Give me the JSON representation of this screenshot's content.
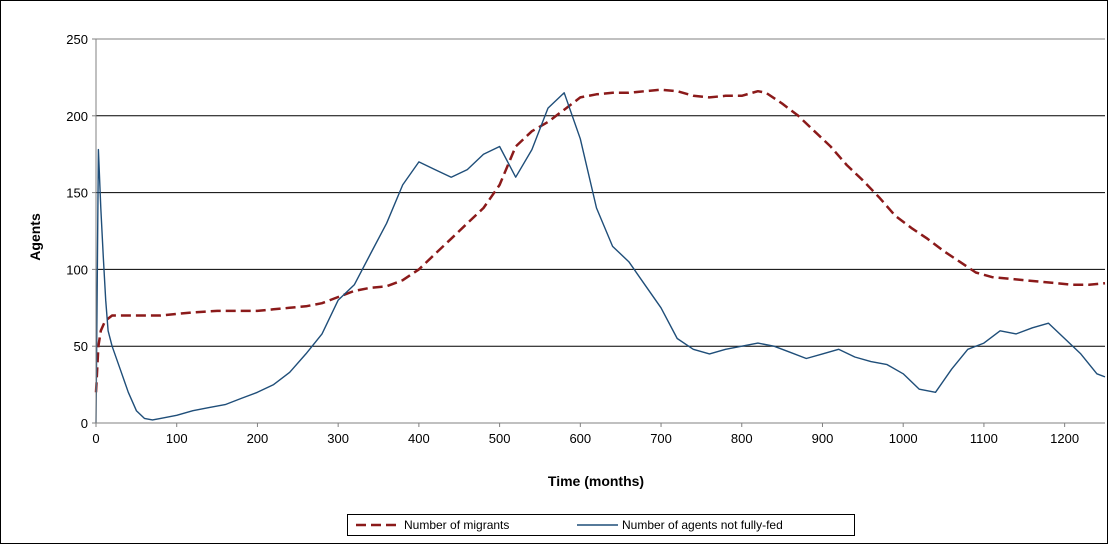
{
  "chart_data": {
    "type": "line",
    "xlabel": "Time (months)",
    "ylabel": "Agents",
    "xlim": [
      0,
      1250
    ],
    "ylim": [
      0,
      250
    ],
    "x_ticks": [
      0,
      100,
      200,
      300,
      400,
      500,
      600,
      700,
      800,
      900,
      1000,
      1100,
      1200
    ],
    "y_ticks": [
      0,
      50,
      100,
      150,
      200,
      250
    ],
    "grid": "horizontal",
    "legend_position": "bottom-center",
    "series": [
      {
        "name": "Number of migrants",
        "color": "#8B1A1A",
        "style": "dashed",
        "x": [
          0,
          3,
          6,
          10,
          15,
          20,
          40,
          60,
          80,
          100,
          120,
          150,
          180,
          200,
          220,
          240,
          260,
          280,
          300,
          320,
          340,
          360,
          380,
          400,
          420,
          440,
          460,
          480,
          500,
          520,
          540,
          560,
          580,
          600,
          620,
          640,
          660,
          680,
          700,
          720,
          740,
          760,
          780,
          800,
          820,
          830,
          850,
          870,
          890,
          910,
          930,
          950,
          970,
          990,
          1010,
          1030,
          1050,
          1070,
          1090,
          1110,
          1130,
          1150,
          1170,
          1190,
          1210,
          1230,
          1250
        ],
        "values": [
          20,
          50,
          60,
          65,
          68,
          70,
          70,
          70,
          70,
          71,
          72,
          73,
          73,
          73,
          74,
          75,
          76,
          78,
          82,
          86,
          88,
          89,
          93,
          100,
          110,
          120,
          130,
          140,
          155,
          180,
          190,
          196,
          204,
          212,
          214,
          215,
          215,
          216,
          217,
          216,
          213,
          212,
          213,
          213,
          216,
          215,
          208,
          200,
          190,
          180,
          168,
          158,
          147,
          135,
          127,
          120,
          112,
          105,
          98,
          95,
          94,
          93,
          92,
          91,
          90,
          90,
          91
        ]
      },
      {
        "name": "Number of agents not fully-fed",
        "color": "#1F4E79",
        "style": "solid",
        "x": [
          0,
          3,
          6,
          9,
          12,
          15,
          20,
          30,
          40,
          50,
          60,
          70,
          80,
          100,
          120,
          140,
          160,
          180,
          200,
          220,
          240,
          260,
          280,
          300,
          320,
          340,
          360,
          380,
          400,
          420,
          440,
          460,
          480,
          500,
          520,
          540,
          560,
          580,
          600,
          620,
          640,
          660,
          680,
          700,
          720,
          740,
          760,
          780,
          800,
          820,
          840,
          860,
          880,
          900,
          920,
          940,
          960,
          980,
          1000,
          1020,
          1040,
          1060,
          1080,
          1100,
          1120,
          1140,
          1160,
          1180,
          1200,
          1220,
          1240,
          1250
        ],
        "values": [
          0,
          178,
          140,
          108,
          80,
          60,
          50,
          35,
          20,
          8,
          3,
          2,
          3,
          5,
          8,
          10,
          12,
          16,
          20,
          25,
          33,
          45,
          58,
          80,
          90,
          110,
          130,
          155,
          170,
          165,
          160,
          165,
          175,
          180,
          160,
          178,
          205,
          215,
          185,
          140,
          115,
          105,
          90,
          75,
          55,
          48,
          45,
          48,
          50,
          52,
          50,
          46,
          42,
          45,
          48,
          43,
          40,
          38,
          32,
          22,
          20,
          35,
          48,
          52,
          60,
          58,
          62,
          65,
          55,
          45,
          32,
          30
        ]
      }
    ]
  }
}
